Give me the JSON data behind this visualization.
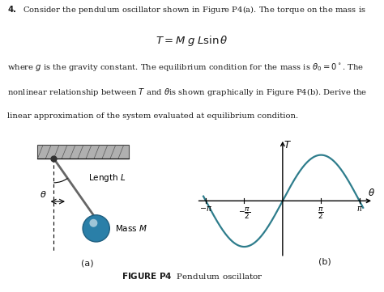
{
  "title_text": "4.  Consider the pendulum oscillator shown in Figure P4(a). The torque on the mass is",
  "formula": "$T = M\\,g\\,L\\sin\\theta$",
  "body_text1": "where $g$ is the gravity constant. The equilibrium condition for the mass is $\\theta_0 = 0^\\circ$. The",
  "body_text2": "nonlinear relationship between $T$ and $\\theta$is shown graphically in Figure P4(b). Derive the",
  "body_text3": "linear approximation of the system evaluated at equilibrium condition.",
  "caption_bold": "FIGURE P4",
  "caption_normal": "  Pendulum oscillator",
  "label_a": "(a)",
  "label_b": "(b)",
  "bg_color": "#ffffff",
  "text_color": "#1a1a1a",
  "sine_color": "#2e7d8c",
  "ceiling_color": "#b0b0b0",
  "ball_color_dark": "#1f5f80",
  "ball_color_mid": "#2a7fa8",
  "ball_color_light": "#4aa0c8",
  "rod_color": "#666666",
  "pivot_color": "#222222"
}
